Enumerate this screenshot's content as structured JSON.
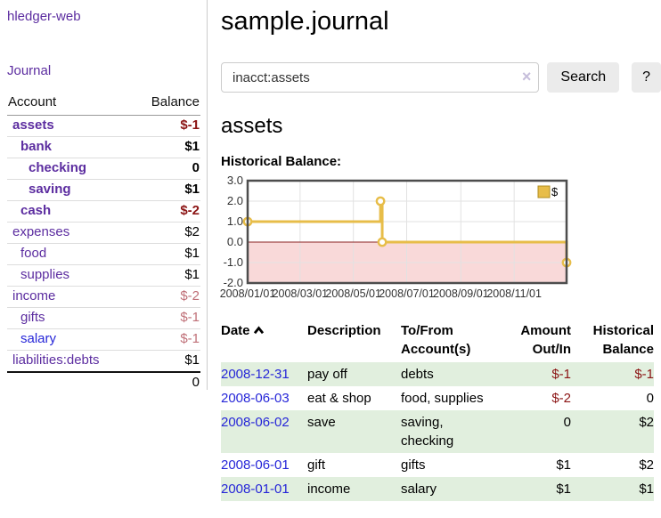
{
  "sidebar": {
    "brand": "hledger-web",
    "nav_journal": "Journal",
    "accounts_table": {
      "headers": [
        "Account",
        "Balance"
      ],
      "rows": [
        {
          "name": "assets",
          "level": 1,
          "bold": true,
          "link_color": "purple",
          "balance": "$-1",
          "balance_style": "negative-strong"
        },
        {
          "name": "bank",
          "level": 2,
          "bold": true,
          "link_color": "purple",
          "balance": "$1",
          "balance_style": "positive-strong"
        },
        {
          "name": "checking",
          "level": 3,
          "bold": true,
          "link_color": "purple",
          "balance": "0",
          "balance_style": "positive-strong"
        },
        {
          "name": "saving",
          "level": 3,
          "bold": true,
          "link_color": "purple",
          "balance": "$1",
          "balance_style": "positive-strong"
        },
        {
          "name": "cash",
          "level": 2,
          "bold": true,
          "link_color": "purple",
          "balance": "$-2",
          "balance_style": "negative-strong"
        },
        {
          "name": "expenses",
          "level": 1,
          "bold": false,
          "link_color": "purple",
          "balance": "$2",
          "balance_style": "normal"
        },
        {
          "name": "food",
          "level": 2,
          "bold": false,
          "link_color": "purple",
          "balance": "$1",
          "balance_style": "normal"
        },
        {
          "name": "supplies",
          "level": 2,
          "bold": false,
          "link_color": "purple",
          "balance": "$1",
          "balance_style": "normal"
        },
        {
          "name": "income",
          "level": 1,
          "bold": false,
          "link_color": "purple",
          "balance": "$-2",
          "balance_style": "negative"
        },
        {
          "name": "gifts",
          "level": 2,
          "bold": false,
          "link_color": "purple",
          "balance": "$-1",
          "balance_style": "negative"
        },
        {
          "name": "salary",
          "level": 2,
          "bold": false,
          "link_color": "blue",
          "balance": "$-1",
          "balance_style": "negative"
        },
        {
          "name": "liabilities:debts",
          "level": 1,
          "bold": false,
          "link_color": "purple",
          "balance": "$1",
          "balance_style": "normal"
        }
      ],
      "total": "0"
    }
  },
  "main": {
    "title": "sample.journal",
    "search": {
      "value": "inacct:assets",
      "clear_glyph": "×",
      "search_button": "Search",
      "help_button": "?"
    },
    "section_title": "assets",
    "chart_label": "Historical Balance:",
    "register": {
      "headers": [
        "Date",
        "Description",
        "To/From Account(s)",
        "Amount Out/In",
        "Historical Balance"
      ],
      "rows": [
        {
          "date": "2008-12-31",
          "description": "pay off",
          "accounts": "debts",
          "amount": "$-1",
          "amount_negative": true,
          "balance": "$-1",
          "balance_negative": true,
          "shaded": true
        },
        {
          "date": "2008-06-03",
          "description": "eat & shop",
          "accounts": "food, supplies",
          "amount": "$-2",
          "amount_negative": true,
          "balance": "0",
          "balance_negative": false,
          "shaded": false
        },
        {
          "date": "2008-06-02",
          "description": "save",
          "accounts": "saving, checking",
          "amount": "0",
          "amount_negative": false,
          "balance": "$2",
          "balance_negative": false,
          "shaded": true
        },
        {
          "date": "2008-06-01",
          "description": "gift",
          "accounts": "gifts",
          "amount": "$1",
          "amount_negative": false,
          "balance": "$2",
          "balance_negative": false,
          "shaded": false
        },
        {
          "date": "2008-01-01",
          "description": "income",
          "accounts": "salary",
          "amount": "$1",
          "amount_negative": false,
          "balance": "$1",
          "balance_negative": false,
          "shaded": true
        }
      ]
    }
  },
  "chart_data": {
    "type": "line",
    "title": "Historical Balance:",
    "step": true,
    "series": [
      {
        "name": "$",
        "color": "#e7bd49",
        "points": [
          [
            "2008-01-01",
            1
          ],
          [
            "2008-06-01",
            2
          ],
          [
            "2008-06-03",
            0
          ],
          [
            "2008-12-31",
            -1
          ]
        ]
      }
    ],
    "x_range": [
      "2008-01-01",
      "2008-12-31"
    ],
    "x_ticks": [
      "2008/01/01",
      "2008/03/01",
      "2008/05/01",
      "2008/07/01",
      "2008/09/01",
      "2008/11/01"
    ],
    "y_ticks": [
      3.0,
      2.0,
      1.0,
      0.0,
      -1.0,
      -2.0
    ],
    "ylim": [
      -2,
      3
    ],
    "grid": true,
    "negative_region_color": "#f9d9d9",
    "zero_line_color": "#8b2222",
    "legend": {
      "label": "$",
      "position": "top-right"
    }
  }
}
